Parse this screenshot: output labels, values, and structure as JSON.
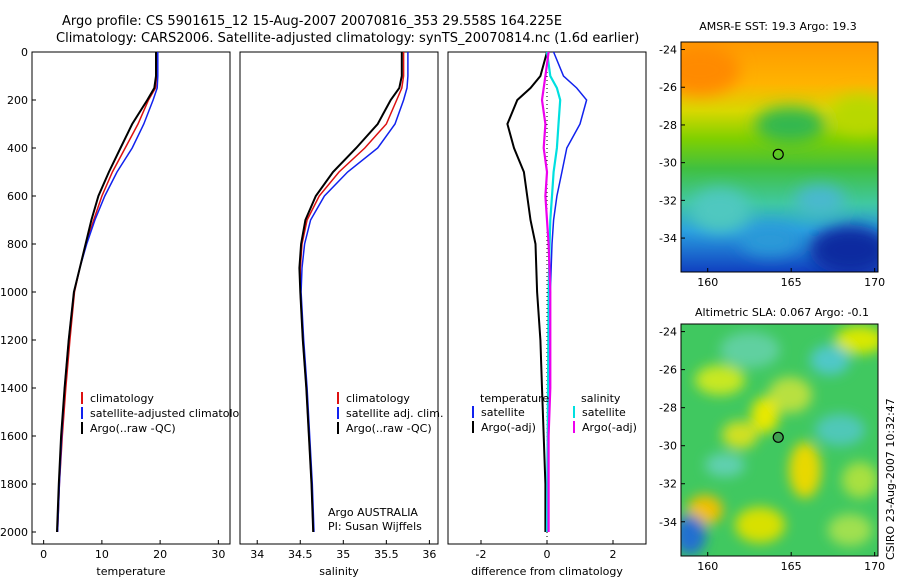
{
  "header": {
    "title_line1": "Argo profile: CS 5901615_12 15-Aug-2007 20070816_353 29.558S 164.225E",
    "title_line2": "Climatology: CARS2006. Satellite-adjusted climatology: synTS_20070814.nc (1.6d earlier)"
  },
  "footer": {
    "credit": "CSIRO 23-Aug-2007 10:32:47"
  },
  "colors": {
    "climatology": "#dd1111",
    "satellite": "#1122ee",
    "argo": "#000000",
    "sal_sat": "#00e0e0",
    "sal_argo": "#ee00ee"
  },
  "chart_data": [
    {
      "type": "line",
      "id": "temperature",
      "xlabel": "temperature",
      "ylabel": "",
      "xlim": [
        -2,
        32
      ],
      "ylim": [
        0,
        2050
      ],
      "xticks": [
        0,
        10,
        20,
        30
      ],
      "yticks": [
        0,
        200,
        400,
        600,
        800,
        1000,
        1200,
        1400,
        1600,
        1800,
        2000
      ],
      "legend": {
        "placement": "lower-right",
        "entries": [
          "climatology",
          "satellite-adjusted climatology",
          "Argo(..raw -QC)"
        ]
      },
      "series": [
        {
          "name": "climatology",
          "color": "#dd1111",
          "x": [
            19.4,
            19.4,
            19.2,
            18.0,
            16.2,
            14.0,
            11.8,
            10.0,
            8.6,
            7.3,
            6.2,
            5.3,
            4.5,
            3.8,
            3.2,
            2.7,
            2.4
          ],
          "depth": [
            0,
            100,
            150,
            200,
            300,
            400,
            500,
            600,
            700,
            800,
            900,
            1000,
            1200,
            1400,
            1600,
            1800,
            2000
          ]
        },
        {
          "name": "satellite-adjusted climatology",
          "color": "#1122ee",
          "x": [
            19.6,
            19.6,
            19.5,
            18.8,
            17.2,
            15.2,
            12.6,
            10.5,
            8.8,
            7.4,
            6.2,
            5.2,
            4.3,
            3.6,
            3.1,
            2.7,
            2.4
          ],
          "depth": [
            0,
            100,
            150,
            200,
            300,
            400,
            500,
            600,
            700,
            800,
            900,
            1000,
            1200,
            1400,
            1600,
            1800,
            2000
          ]
        },
        {
          "name": "Argo(..raw -QC)",
          "color": "#000000",
          "x": [
            19.3,
            19.3,
            19.0,
            17.8,
            15.2,
            13.2,
            11.2,
            9.4,
            8.2,
            7.2,
            6.2,
            5.2,
            4.3,
            3.6,
            3.0,
            2.6,
            2.3
          ],
          "depth": [
            0,
            100,
            150,
            200,
            300,
            400,
            500,
            600,
            700,
            800,
            900,
            1000,
            1200,
            1400,
            1600,
            1800,
            2000
          ]
        }
      ]
    },
    {
      "type": "line",
      "id": "salinity",
      "xlabel": "salinity",
      "ylabel": "",
      "xlim": [
        33.8,
        36.1
      ],
      "ylim": [
        0,
        2050
      ],
      "xticks": [
        34,
        34.5,
        35,
        35.5,
        36
      ],
      "legend": {
        "placement": "lower-right",
        "entries": [
          "climatology",
          "satellite adj. clim.",
          "Argo(..raw -QC)"
        ]
      },
      "annotation": [
        "Argo AUSTRALIA",
        "PI: Susan Wijffels"
      ],
      "series": [
        {
          "name": "climatology",
          "color": "#dd1111",
          "x": [
            35.7,
            35.7,
            35.68,
            35.62,
            35.5,
            35.25,
            34.95,
            34.72,
            34.58,
            34.52,
            34.5,
            34.5,
            34.53,
            34.57,
            34.6,
            34.63,
            34.65
          ],
          "depth": [
            0,
            100,
            150,
            200,
            300,
            400,
            500,
            600,
            700,
            800,
            900,
            1000,
            1200,
            1400,
            1600,
            1800,
            2000
          ]
        },
        {
          "name": "satellite adj. clim.",
          "color": "#1122ee",
          "x": [
            35.75,
            35.75,
            35.74,
            35.7,
            35.6,
            35.4,
            35.05,
            34.78,
            34.62,
            34.55,
            34.52,
            34.51,
            34.54,
            34.58,
            34.61,
            34.64,
            34.66
          ],
          "depth": [
            0,
            100,
            150,
            200,
            300,
            400,
            500,
            600,
            700,
            800,
            900,
            1000,
            1200,
            1400,
            1600,
            1800,
            2000
          ]
        },
        {
          "name": "Argo(..raw -QC)",
          "color": "#000000",
          "x": [
            35.68,
            35.68,
            35.65,
            35.55,
            35.4,
            35.15,
            34.88,
            34.68,
            34.56,
            34.51,
            34.49,
            34.5,
            34.53,
            34.57,
            34.6,
            34.63,
            34.65
          ],
          "depth": [
            0,
            100,
            150,
            200,
            300,
            400,
            500,
            600,
            700,
            800,
            900,
            1000,
            1200,
            1400,
            1600,
            1800,
            2000
          ]
        }
      ]
    },
    {
      "type": "line",
      "id": "difference",
      "xlabel": "difference from climatology",
      "ylabel": "",
      "xlim": [
        -3,
        3
      ],
      "ylim": [
        0,
        2050
      ],
      "xticks": [
        -2,
        0,
        2
      ],
      "legend": {
        "placement": "lower-right",
        "groups": [
          {
            "title": "temperature",
            "entries": [
              "satellite",
              "Argo(-adj)"
            ]
          },
          {
            "title": "salinity",
            "entries": [
              "satellite",
              "Argo(-adj)"
            ]
          }
        ]
      },
      "series": [
        {
          "name": "satellite",
          "group": "temperature",
          "color": "#1122ee",
          "x": [
            0.2,
            0.5,
            0.9,
            1.2,
            1.0,
            0.6,
            0.45,
            0.3,
            0.2,
            0.15,
            0.1,
            0.08,
            0.05,
            0.03,
            0.02,
            0.0
          ],
          "depth": [
            0,
            100,
            150,
            200,
            300,
            400,
            500,
            600,
            700,
            800,
            1000,
            1200,
            1400,
            1600,
            1800,
            2000
          ]
        },
        {
          "name": "Argo(-adj)",
          "group": "temperature",
          "color": "#000000",
          "x": [
            0.0,
            -0.2,
            -0.5,
            -0.9,
            -1.2,
            -1.0,
            -0.7,
            -0.6,
            -0.5,
            -0.35,
            -0.3,
            -0.2,
            -0.15,
            -0.1,
            -0.05,
            -0.05
          ],
          "depth": [
            0,
            100,
            150,
            200,
            300,
            400,
            500,
            600,
            700,
            800,
            1000,
            1200,
            1400,
            1600,
            1800,
            2000
          ]
        },
        {
          "name": "satellite",
          "group": "salinity",
          "color": "#00e0e0",
          "x": [
            0.0,
            0.1,
            0.3,
            0.4,
            0.35,
            0.3,
            0.2,
            0.15,
            0.1,
            0.08,
            0.05,
            0.04,
            0.03,
            0.02,
            0.01,
            0.0
          ],
          "depth": [
            0,
            100,
            150,
            200,
            300,
            400,
            500,
            600,
            700,
            800,
            1000,
            1200,
            1400,
            1600,
            1800,
            2000
          ]
        },
        {
          "name": "Argo(-adj)",
          "group": "salinity",
          "color": "#ee00ee",
          "x": [
            0.05,
            -0.05,
            -0.1,
            -0.15,
            -0.05,
            -0.1,
            0.0,
            -0.05,
            0.0,
            0.05,
            0.1,
            0.1,
            0.1,
            0.05,
            0.05,
            0.05
          ],
          "depth": [
            0,
            100,
            150,
            200,
            300,
            400,
            500,
            600,
            700,
            800,
            1000,
            1200,
            1400,
            1600,
            1800,
            2000
          ]
        }
      ]
    },
    {
      "type": "heatmap",
      "id": "sst_map",
      "title": "AMSR-E SST: 19.3 Argo: 19.3",
      "xlim": [
        158.4,
        170.2
      ],
      "ylim": [
        -35.8,
        -23.6
      ],
      "xticks": [
        160,
        165,
        170
      ],
      "yticks": [
        -24,
        -26,
        -28,
        -30,
        -32,
        -34
      ],
      "marker": {
        "lon": 164.225,
        "lat": -29.558
      }
    },
    {
      "type": "heatmap",
      "id": "sla_map",
      "title": "Altimetric SLA: 0.067 Argo: -0.1",
      "xlim": [
        158.4,
        170.2
      ],
      "ylim": [
        -35.8,
        -23.6
      ],
      "xticks": [
        160,
        165,
        170
      ],
      "yticks": [
        -24,
        -26,
        -28,
        -30,
        -32,
        -34
      ],
      "marker": {
        "lon": 164.225,
        "lat": -29.558
      }
    }
  ]
}
